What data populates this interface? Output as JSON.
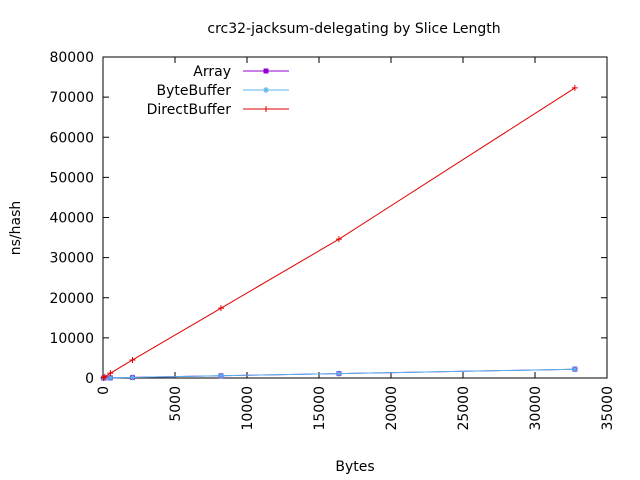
{
  "chart_data": {
    "type": "line",
    "title": "crc32-jacksum-delegating by Slice Length",
    "xlabel": "Bytes",
    "ylabel": "ns/hash",
    "xlim": [
      0,
      35000
    ],
    "ylim": [
      0,
      80000
    ],
    "xticks": [
      "0",
      "5000",
      "10000",
      "15000",
      "20000",
      "25000",
      "30000",
      "35000"
    ],
    "yticks": [
      "0",
      "10000",
      "20000",
      "30000",
      "40000",
      "50000",
      "60000",
      "70000",
      "80000"
    ],
    "grid": false,
    "legend_position": "top-left",
    "series": [
      {
        "name": "Array",
        "color": "#9400d3",
        "marker": "square",
        "points": [
          [
            32,
            5
          ],
          [
            128,
            12
          ],
          [
            512,
            35
          ],
          [
            2048,
            140
          ],
          [
            8192,
            550
          ],
          [
            16384,
            1100
          ],
          [
            32768,
            2200
          ]
        ]
      },
      {
        "name": "ByteBuffer",
        "color": "#56b4e9",
        "marker": "star",
        "points": [
          [
            32,
            5
          ],
          [
            128,
            12
          ],
          [
            512,
            35
          ],
          [
            2048,
            140
          ],
          [
            8192,
            550
          ],
          [
            16384,
            1100
          ],
          [
            32768,
            2200
          ]
        ]
      },
      {
        "name": "DirectBuffer",
        "color": "#e00000",
        "marker": "plus",
        "points": [
          [
            32,
            70
          ],
          [
            128,
            280
          ],
          [
            512,
            1200
          ],
          [
            2048,
            4500
          ],
          [
            8192,
            17400
          ],
          [
            16384,
            34600
          ],
          [
            32768,
            72300
          ]
        ]
      }
    ]
  }
}
